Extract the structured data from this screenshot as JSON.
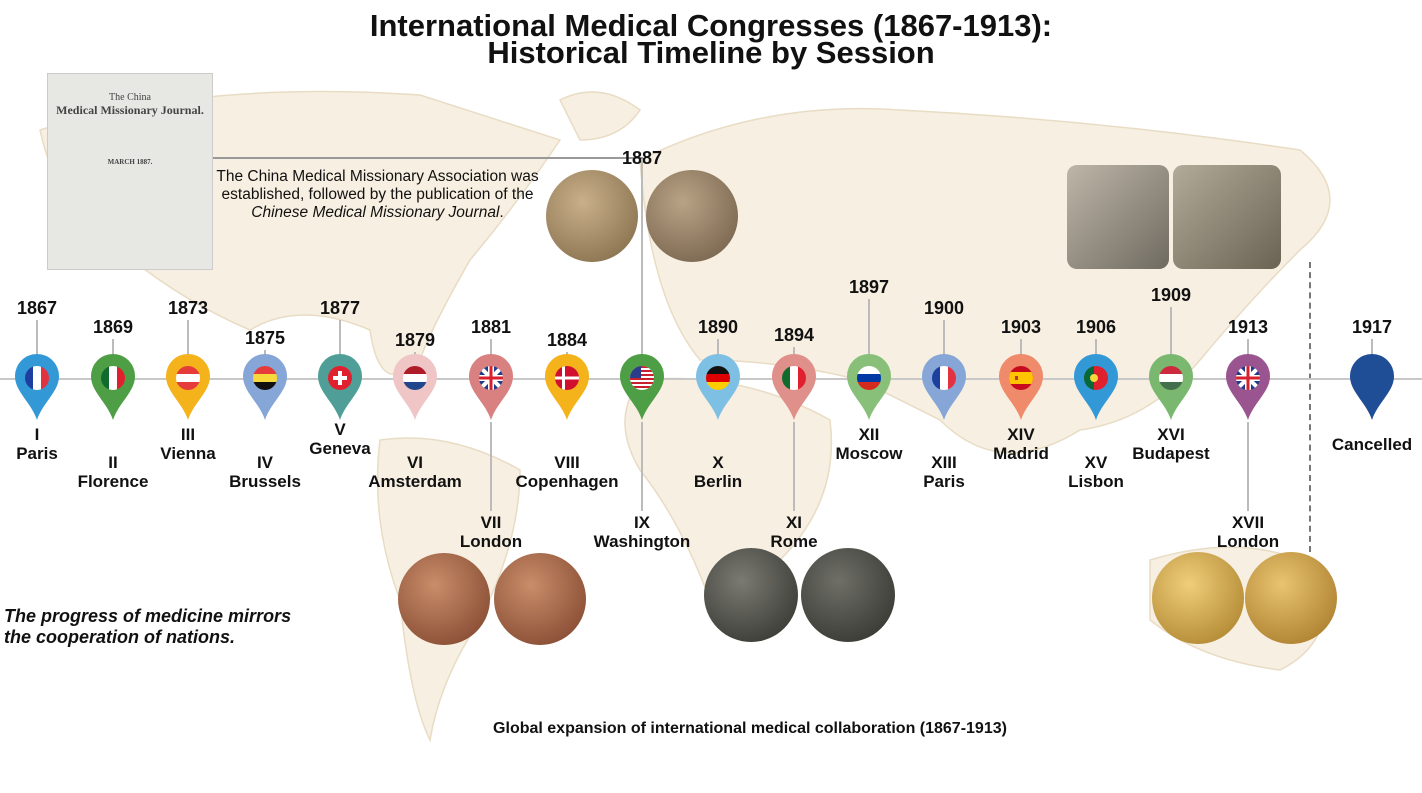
{
  "title": {
    "line1": "International Medical Congresses (1867-1913):",
    "line2": "Historical Timeline by Session"
  },
  "note": {
    "text": "The China Medical Missionary Association was established, followed by the publication of the ",
    "italic": "Chinese Medical Missionary Journal",
    "end": ".",
    "year": "1887"
  },
  "journal": {
    "line1": "The China",
    "line2": "Medical Missionary Journal.",
    "date": "MARCH 1887."
  },
  "motto": {
    "line1": "The progress of medicine mirrors",
    "line2": "the cooperation of nations."
  },
  "caption": "Global expansion of international medical collaboration (1867-1913)",
  "sessions": [
    {
      "year": "1867",
      "num": "I",
      "city": "Paris",
      "color": "#3399d6",
      "flag": "france"
    },
    {
      "year": "1869",
      "num": "II",
      "city": "Florence",
      "color": "#4e9e45",
      "flag": "italy"
    },
    {
      "year": "1873",
      "num": "III",
      "city": "Vienna",
      "color": "#f4b21b",
      "flag": "austria"
    },
    {
      "year": "1875",
      "num": "IV",
      "city": "Brussels",
      "color": "#85a6d6",
      "flag": "belgium"
    },
    {
      "year": "1877",
      "num": "V",
      "city": "Geneva",
      "color": "#4f9f98",
      "flag": "switzerland"
    },
    {
      "year": "1879",
      "num": "VI",
      "city": "Amsterdam",
      "color": "#efc5c5",
      "flag": "netherlands"
    },
    {
      "year": "1881",
      "num": "VII",
      "city": "London",
      "color": "#d98080",
      "flag": "uk"
    },
    {
      "year": "1884",
      "num": "VIII",
      "city": "Copenhagen",
      "color": "#f4b21b",
      "flag": "denmark"
    },
    {
      "year": "1887",
      "num": "IX",
      "city": "Washington",
      "color": "#4e9e45",
      "flag": "usa"
    },
    {
      "year": "1890",
      "num": "X",
      "city": "Berlin",
      "color": "#7ec0e4",
      "flag": "germany"
    },
    {
      "year": "1894",
      "num": "XI",
      "city": "Rome",
      "color": "#e0908a",
      "flag": "italy"
    },
    {
      "year": "1897",
      "num": "XII",
      "city": "Moscow",
      "color": "#88c07a",
      "flag": "russia"
    },
    {
      "year": "1900",
      "num": "XIII",
      "city": "Paris",
      "color": "#85a6d6",
      "flag": "france"
    },
    {
      "year": "1903",
      "num": "XIV",
      "city": "Madrid",
      "color": "#ef8a6a",
      "flag": "spain"
    },
    {
      "year": "1906",
      "num": "XV",
      "city": "Lisbon",
      "color": "#3399d6",
      "flag": "portugal"
    },
    {
      "year": "1909",
      "num": "XVI",
      "city": "Budapest",
      "color": "#7ab870",
      "flag": "hungary"
    },
    {
      "year": "1913",
      "num": "XVII",
      "city": "London",
      "color": "#9a5590",
      "flag": "uk"
    },
    {
      "year": "1917",
      "num": "",
      "city": "Cancelled",
      "color": "#1f4e96",
      "flag": "none"
    }
  ]
}
